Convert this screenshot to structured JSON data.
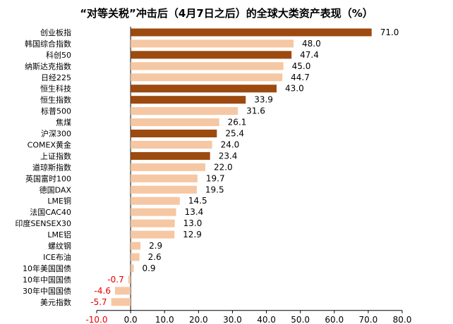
{
  "chart_data": {
    "type": "bar",
    "orientation": "horizontal",
    "title": "“对等关税”冲击后（4月7日之后）的全球大类资产表现（%）",
    "categories": [
      "创业板指",
      "韩国综合指数",
      "科创50",
      "纳斯达克指数",
      "日经225",
      "恒生科技",
      "恒生指数",
      "标普500",
      "焦煤",
      "沪深300",
      "COMEX黄金",
      "上证指数",
      "道琼斯指数",
      "英国富时100",
      "德国DAX",
      "LME铜",
      "法国CAC40",
      "印度SENSEX30",
      "LME铝",
      "螺纹钢",
      "ICE布油",
      "10年美国国债",
      "10年中国国债",
      "30年中国国债",
      "美元指数"
    ],
    "values": [
      71.0,
      48.0,
      47.4,
      45.0,
      44.7,
      43.0,
      33.9,
      31.6,
      26.1,
      25.4,
      24.0,
      23.4,
      22.0,
      19.7,
      19.5,
      14.5,
      13.4,
      13.0,
      12.9,
      2.9,
      2.6,
      0.9,
      -0.7,
      -4.6,
      -5.7
    ],
    "value_labels": [
      "71.0",
      "48.0",
      "47.4",
      "45.0",
      "44.7",
      "43.0",
      "33.9",
      "31.6",
      "26.1",
      "25.4",
      "24.0",
      "23.4",
      "22.0",
      "19.7",
      "19.5",
      "14.5",
      "13.4",
      "13.0",
      "12.9",
      "2.9",
      "2.6",
      "0.9",
      "-0.7",
      "-4.6",
      "-5.7"
    ],
    "highlight": [
      true,
      false,
      true,
      false,
      false,
      true,
      true,
      false,
      false,
      true,
      false,
      true,
      false,
      false,
      false,
      false,
      false,
      false,
      false,
      false,
      false,
      false,
      false,
      false,
      false
    ],
    "xlim": [
      -10,
      80
    ],
    "xticks": [
      "-10.0",
      "0.0",
      "10.0",
      "20.0",
      "30.0",
      "40.0",
      "50.0",
      "60.0",
      "70.0",
      "80.0"
    ],
    "xtick_values": [
      -10,
      0,
      10,
      20,
      30,
      40,
      50,
      60,
      70,
      80
    ],
    "colors": {
      "highlight": "#9c4a10",
      "normal": "#f6c7a3",
      "negative_text": "#e60000",
      "text": "#000000",
      "axis": "#000000"
    }
  }
}
